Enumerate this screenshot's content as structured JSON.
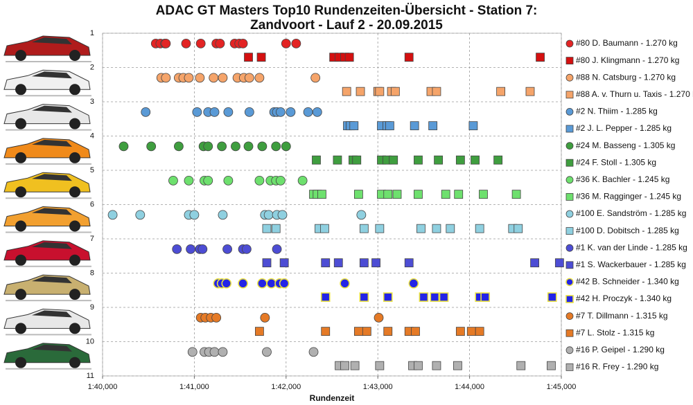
{
  "chart_data": {
    "type": "scatter",
    "title": [
      "ADAC GT Masters Top10 Rundenzeiten-Übersicht - Station 7:",
      "Zandvoort - Lauf 2 - 20.09.2015"
    ],
    "xlabel": "Rundenzeit",
    "xlim": [
      100,
      105
    ],
    "xticks": [
      {
        "value": 100,
        "label": "1:40,000"
      },
      {
        "value": 101,
        "label": "1:41,000"
      },
      {
        "value": 102,
        "label": "1:42,000"
      },
      {
        "value": 103,
        "label": "1:43,000"
      },
      {
        "value": 104,
        "label": "1:44,000"
      },
      {
        "value": 105,
        "label": "1:45,000"
      }
    ],
    "ylim": [
      1,
      11
    ],
    "y_inverted": true,
    "yticks": [
      1,
      2,
      3,
      4,
      5,
      6,
      7,
      8,
      9,
      10,
      11
    ],
    "grid": true,
    "legend": "right",
    "series": [
      {
        "name": "#80 D. Baumann - 1.270 kg",
        "color": "#e32424",
        "marker": "circle",
        "y": 1.3,
        "x": [
          100.58,
          100.63,
          100.68,
          100.69,
          100.91,
          101.07,
          101.24,
          101.28,
          101.44,
          101.49,
          101.53,
          102.0,
          102.11
        ]
      },
      {
        "name": "#80 J. Klingmann - 1.270 kg",
        "color": "#d41010",
        "marker": "square",
        "y": 1.7,
        "x": [
          101.59,
          101.73,
          102.52,
          102.58,
          102.64,
          102.69,
          103.34,
          104.77
        ]
      },
      {
        "name": "#88 N. Catsburg - 1.270 kg",
        "color": "#f5a46a",
        "marker": "circle",
        "y": 2.3,
        "x": [
          100.64,
          100.69,
          100.83,
          100.88,
          100.94,
          101.06,
          101.21,
          101.31,
          101.47,
          101.54,
          101.6,
          101.71,
          102.32
        ]
      },
      {
        "name": "#88 A. v. Thurn u. Taxis - 1.270 kg",
        "color": "#f5a46a",
        "marker": "square",
        "y": 2.7,
        "x": [
          102.66,
          102.81,
          103.0,
          103.02,
          103.15,
          103.19,
          103.58,
          103.64,
          104.34,
          104.66
        ]
      },
      {
        "name": "#2 N. Thiim - 1.285 kg",
        "color": "#5a9ad6",
        "marker": "circle",
        "y": 3.3,
        "x": [
          100.47,
          101.03,
          101.15,
          101.22,
          101.37,
          101.6,
          101.87,
          101.9,
          101.94,
          102.05,
          102.24,
          102.34
        ]
      },
      {
        "name": "#2 J. L. Pepper - 1.285 kg",
        "color": "#5a9ad6",
        "marker": "square",
        "y": 3.7,
        "x": [
          102.67,
          102.7,
          102.74,
          103.04,
          103.1,
          103.13,
          103.4,
          103.6,
          104.04
        ]
      },
      {
        "name": "#24 M. Basseng - 1.305 kg",
        "color": "#3f9e3f",
        "marker": "circle",
        "y": 4.3,
        "x": [
          100.23,
          100.53,
          100.83,
          101.1,
          101.15,
          101.3,
          101.45,
          101.59,
          101.74,
          101.89,
          102.0
        ]
      },
      {
        "name": "#24 F. Stoll - 1.305 kg",
        "color": "#3f9e3f",
        "marker": "square",
        "y": 4.7,
        "x": [
          102.33,
          102.56,
          102.73,
          102.77,
          103.04,
          103.1,
          103.17,
          103.44,
          103.66,
          103.9,
          104.06,
          104.31
        ]
      },
      {
        "name": "#36 K. Bachler - 1.245 kg",
        "color": "#6ee06e",
        "marker": "circle",
        "y": 5.3,
        "x": [
          100.77,
          100.94,
          101.11,
          101.15,
          101.37,
          101.71,
          101.83,
          101.89,
          101.94,
          102.18
        ]
      },
      {
        "name": "#36 M. Ragginger - 1.245 kg",
        "color": "#6ee06e",
        "marker": "square",
        "y": 5.7,
        "x": [
          102.3,
          102.34,
          102.39,
          102.79,
          103.04,
          103.11,
          103.21,
          103.44,
          103.74,
          103.88,
          104.15,
          104.51
        ]
      },
      {
        "name": "#100 E. Sandström - 1.285 kg",
        "color": "#8fd0e0",
        "marker": "circle",
        "y": 6.3,
        "x": [
          100.11,
          100.41,
          100.94,
          101.0,
          101.31,
          101.77,
          101.81,
          101.9,
          101.96,
          102.82
        ]
      },
      {
        "name": "#100 D. Dobitsch - 1.285 kg",
        "color": "#8fd0e0",
        "marker": "square",
        "y": 6.7,
        "x": [
          101.79,
          101.89,
          102.36,
          102.42,
          102.85,
          103.02,
          103.47,
          103.64,
          103.79,
          104.11,
          104.47,
          104.53
        ]
      },
      {
        "name": "#1 K. van der Linde - 1.285 kg",
        "color": "#4d4dd4",
        "marker": "circle",
        "y": 7.3,
        "x": [
          100.81,
          100.96,
          101.06,
          101.09,
          101.36,
          101.53,
          101.57,
          101.9
        ]
      },
      {
        "name": "#1 S. Wackerbauer - 1.285 kg",
        "color": "#4d4dd4",
        "marker": "square",
        "y": 7.7,
        "x": [
          101.79,
          101.98,
          102.43,
          102.57,
          102.85,
          102.98,
          103.34,
          104.71,
          104.98
        ]
      },
      {
        "name": "#42 B. Schneider - 1.340 kg",
        "color": "#2424e6",
        "marker": "circle",
        "edgecolor": "#e8e040",
        "y": 8.3,
        "x": [
          101.26,
          101.3,
          101.35,
          101.53,
          101.74,
          101.84,
          101.93,
          101.98,
          102.64,
          103.39
        ]
      },
      {
        "name": "#42 H. Proczyk - 1.340 kg",
        "color": "#2424e6",
        "marker": "square",
        "edgecolor": "#e8e040",
        "y": 8.7,
        "x": [
          102.43,
          102.85,
          103.11,
          103.5,
          103.62,
          103.72,
          104.11,
          104.17,
          104.9
        ]
      },
      {
        "name": "#7 T. Dillmann - 1.315 kg",
        "color": "#e57a26",
        "marker": "circle",
        "y": 9.3,
        "x": [
          101.07,
          101.12,
          101.18,
          101.24,
          101.77,
          103.01
        ]
      },
      {
        "name": "#7 L. Stolz - 1.315 kg",
        "color": "#e57a26",
        "marker": "square",
        "y": 9.7,
        "x": [
          101.71,
          102.43,
          102.79,
          102.88,
          103.11,
          103.34,
          103.41,
          103.9,
          104.02,
          104.11
        ]
      },
      {
        "name": "#16 P. Geipel - 1.290 kg",
        "color": "#b0b0b0",
        "marker": "circle",
        "y": 10.3,
        "x": [
          100.98,
          101.11,
          101.16,
          101.22,
          101.31,
          101.79,
          102.3
        ]
      },
      {
        "name": "#16 R. Frey - 1.290 kg",
        "color": "#b0b0b0",
        "marker": "square",
        "y": 10.7,
        "x": [
          102.58,
          102.64,
          102.75,
          103.02,
          103.38,
          103.44,
          103.64,
          103.87,
          104.56,
          104.89
        ]
      }
    ]
  }
}
